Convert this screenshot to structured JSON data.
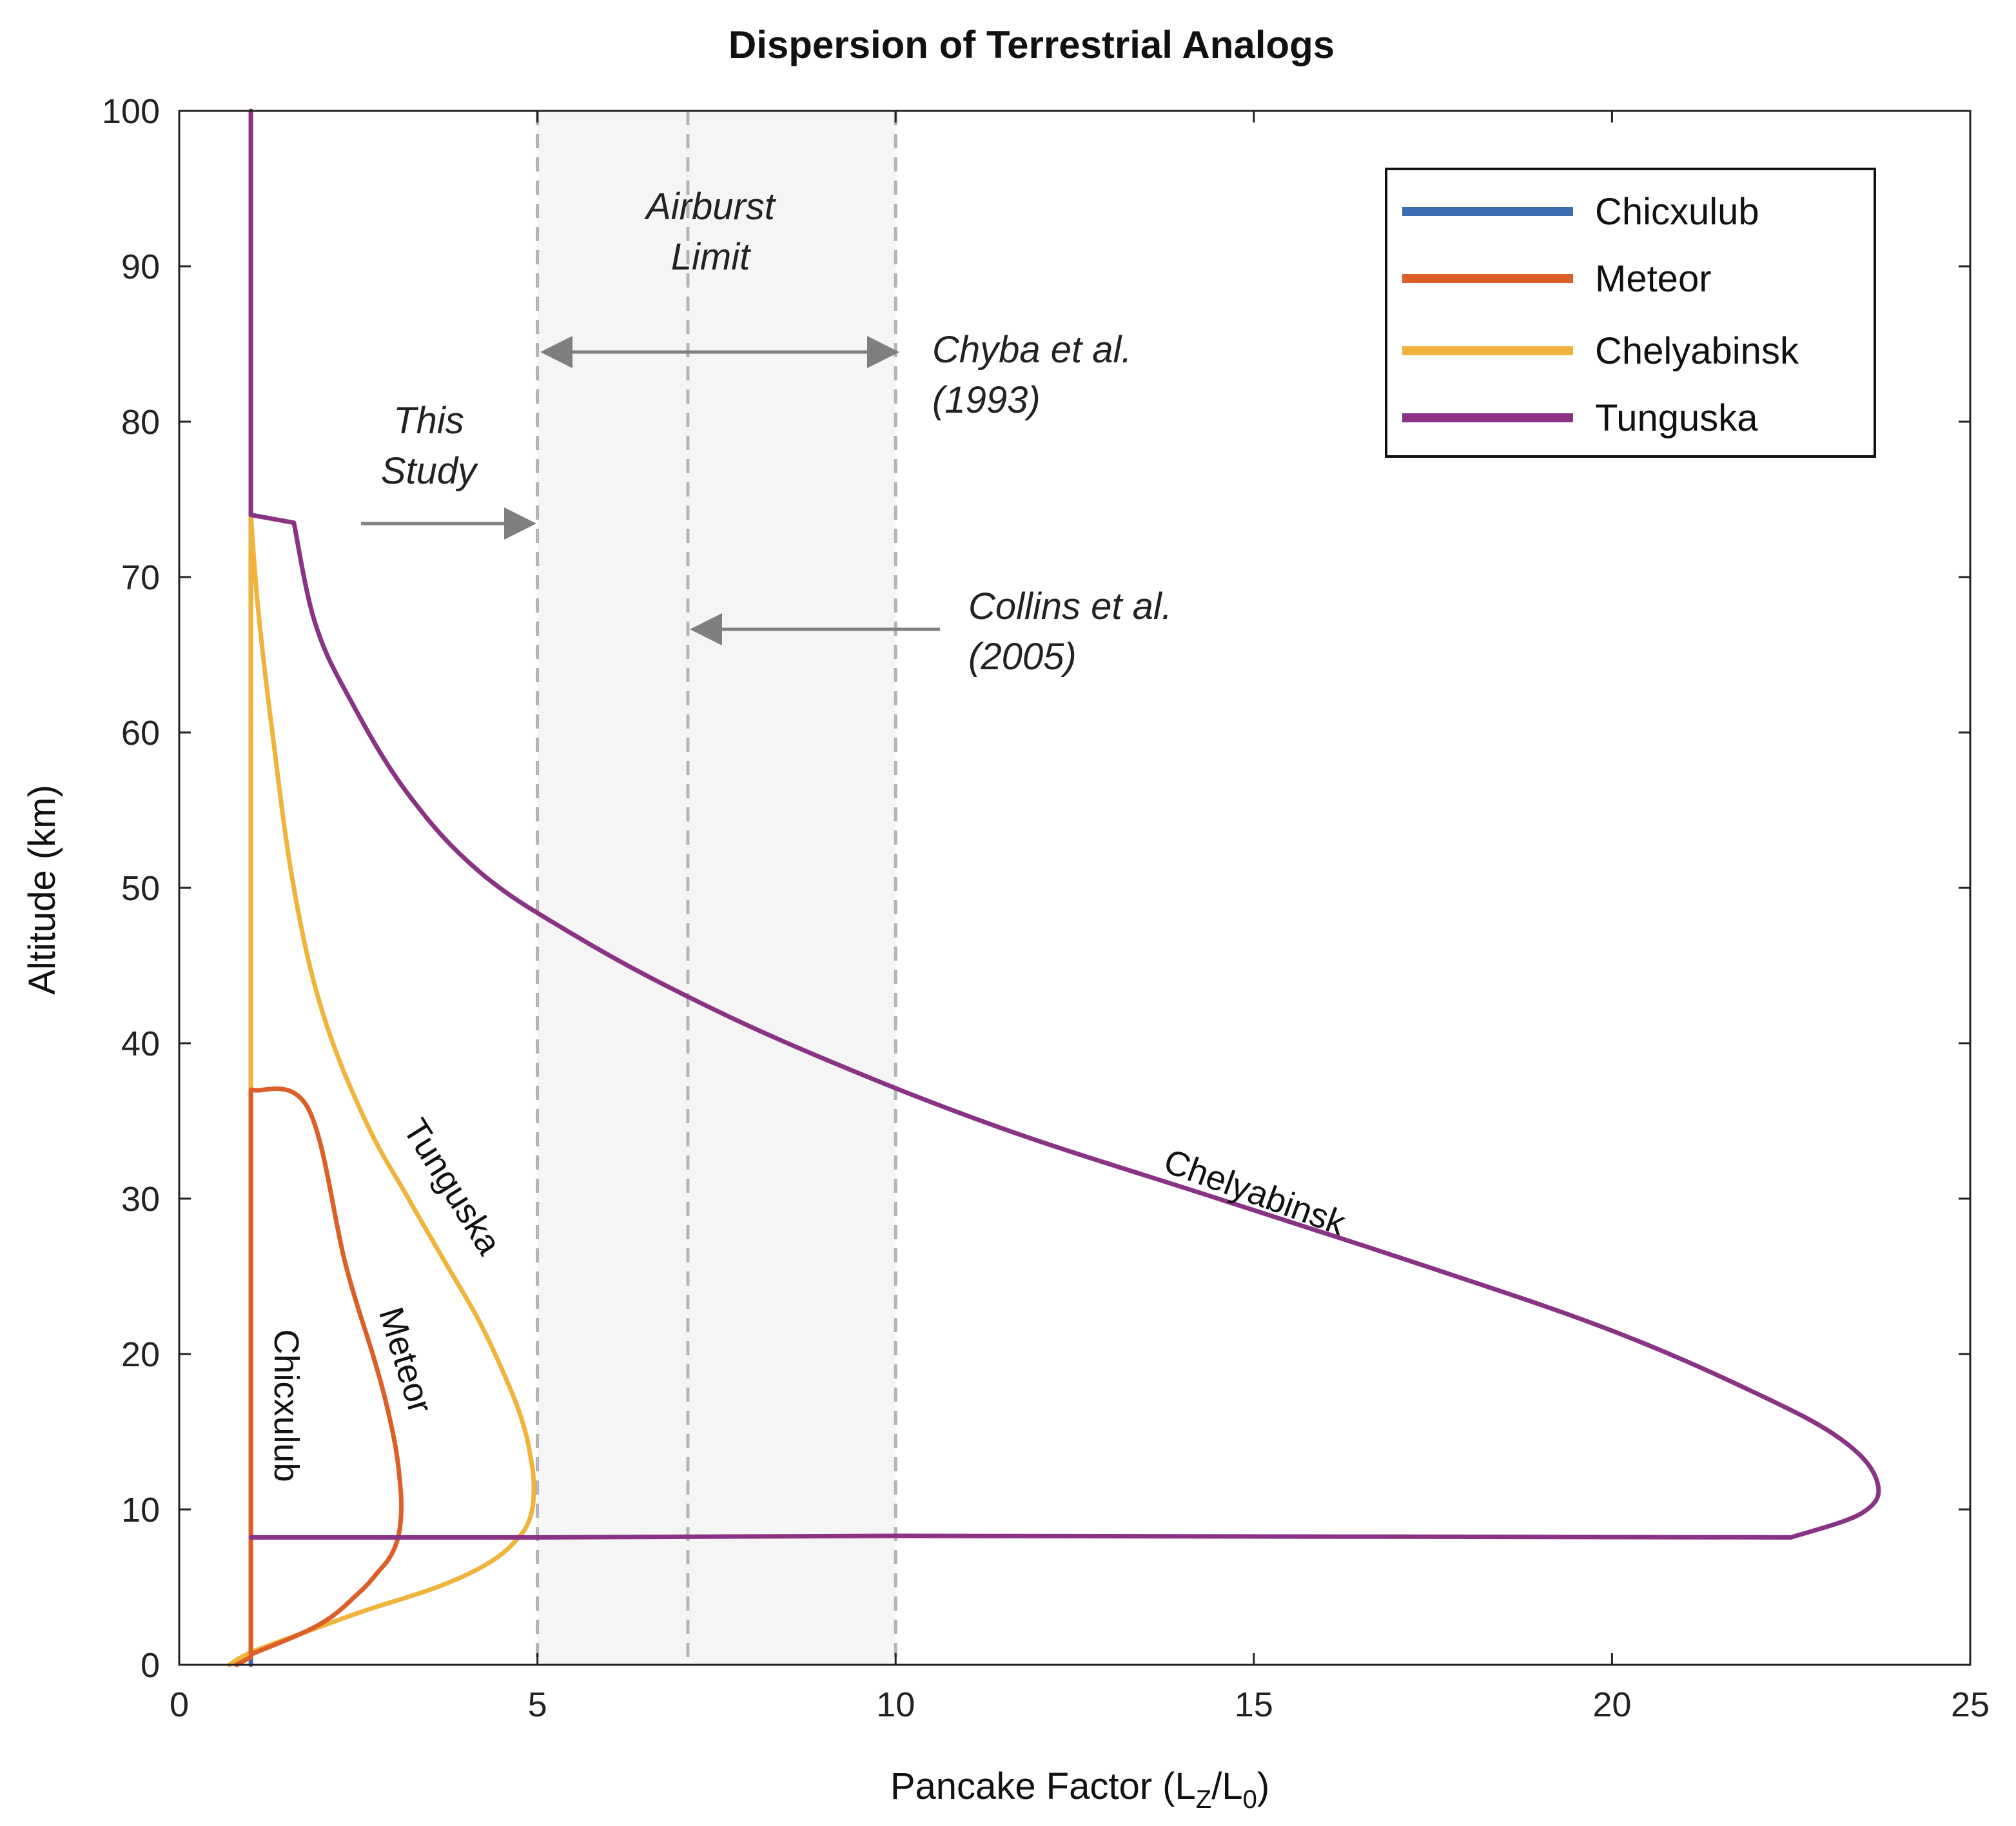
{
  "chart_data": {
    "type": "line",
    "title": "Dispersion of Terrestrial Analogs",
    "xlabel": "Pancake Factor (L",
    "xlabel_sub1": "Z",
    "xlabel_mid": "/L",
    "xlabel_sub2": "0",
    "xlabel_end": ")",
    "ylabel": "Altitude (km)",
    "xlim": [
      0,
      25
    ],
    "ylim": [
      0,
      100
    ],
    "xticks": [
      0,
      5,
      10,
      15,
      20,
      25
    ],
    "yticks": [
      0,
      10,
      20,
      30,
      40,
      50,
      60,
      70,
      80,
      90,
      100
    ],
    "grid": false,
    "legend_position": "top-right",
    "shaded_region": {
      "x": [
        5,
        10
      ],
      "color": "#f5f5f5"
    },
    "dashed_lines": [
      5,
      7.1,
      10
    ],
    "series": [
      {
        "name": "Chicxulub",
        "color": "#3c6db0",
        "x": [
          1,
          1,
          1,
          1
        ],
        "y": [
          0,
          7,
          37,
          100
        ]
      },
      {
        "name": "Meteor",
        "color": "#dd5f28",
        "x": [
          0.8,
          1,
          1,
          1.03,
          1.8,
          2.32,
          2.7,
          2.88,
          3.02,
          3.08,
          3.1,
          3.06,
          2.95,
          2.78,
          2.5,
          1.96,
          1.02,
          1,
          1,
          1,
          1.6,
          2.1,
          2.5,
          2.8,
          3.0,
          3.1,
          3.06,
          2.92,
          2.66,
          2.25,
          1.7,
          1.2
        ],
        "y": [
          0,
          0.5,
          37,
          37,
          35.8,
          25.8,
          20,
          17,
          14,
          11.8,
          10,
          8.3,
          7,
          6,
          4.6,
          2.6,
          0.7,
          0.5,
          37,
          80,
          35.6,
          28,
          22,
          18,
          15,
          12,
          9,
          7,
          5.5,
          4,
          2.2,
          0.9
        ]
      },
      {
        "name": "Chelyabinsk",
        "color": "#f0b43c",
        "x": [
          0.7,
          1.0,
          1.0,
          1.1,
          1.3,
          1.6,
          2.0,
          2.6,
          3.2,
          3.7,
          4.2,
          4.6,
          4.8,
          4.9,
          4.95,
          4.9,
          4.7,
          4.3,
          3.6,
          2.6,
          1.7,
          1.0,
          0.7
        ],
        "y": [
          0,
          0.6,
          74,
          68,
          60,
          50,
          42,
          35,
          30,
          26,
          22,
          18,
          15.5,
          13.5,
          11.5,
          9.5,
          8,
          6.5,
          5,
          3.5,
          2,
          0.8,
          0
        ]
      },
      {
        "name": "Tunguska",
        "color": "#8a3385",
        "x": [
          1,
          1,
          1.6,
          1.9,
          2.4,
          3.2,
          4.2,
          5.5,
          7.1,
          9.0,
          11.5,
          14.5,
          17.5,
          20.0,
          22.0,
          23.2,
          23.7,
          23.5,
          22.5,
          10.0,
          5.0,
          1.0
        ],
        "y": [
          100,
          74,
          73.5,
          67,
          62,
          56,
          51,
          47,
          43,
          39,
          34.5,
          30,
          25.5,
          21.5,
          17.5,
          14.5,
          11.8,
          9.8,
          8.2,
          8.3,
          8.2,
          8.2
        ]
      }
    ],
    "annotations": {
      "airburst_line1": "Airburst",
      "airburst_line2": "Limit",
      "this_study_line1": "This",
      "this_study_line2": "Study",
      "chyba_line1": "Chyba et al.",
      "chyba_line2": "(1993)",
      "collins_line1": "Collins et al.",
      "collins_line2": "(2005)",
      "curve_label_chicxulub": "Chicxulub",
      "curve_label_meteor": "Meteor",
      "curve_label_tunguska": "Tunguska",
      "curve_label_chelyabinsk": "Chelyabinsk"
    }
  }
}
